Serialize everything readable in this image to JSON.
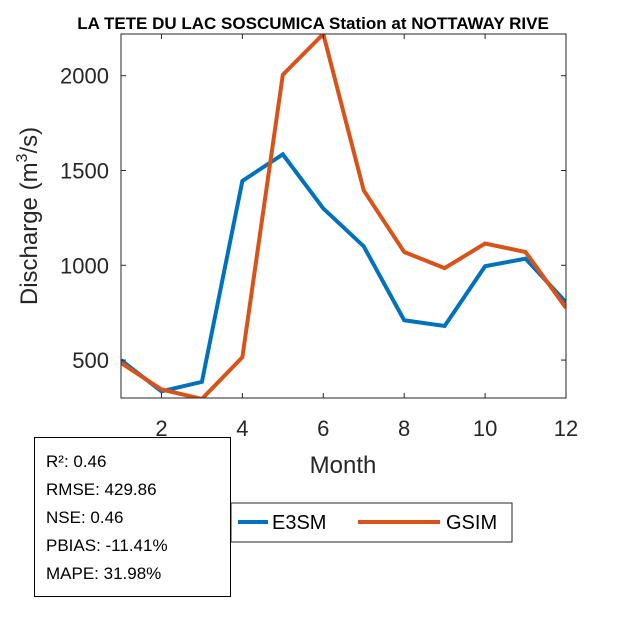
{
  "chart_data": {
    "type": "line",
    "title": "LA TETE DU LAC SOSCUMICA  Station at  NOTTAWAY RIVE",
    "xlabel": "Month",
    "ylabel": "Discharge (m",
    "ylabel_sup": "3",
    "ylabel_suffix": "/s)",
    "xlim": [
      1,
      12
    ],
    "ylim": [
      300,
      2220
    ],
    "x_ticks": [
      2,
      4,
      6,
      8,
      10,
      12
    ],
    "y_ticks": [
      500,
      1000,
      1500,
      2000
    ],
    "x": [
      1,
      2,
      3,
      4,
      5,
      6,
      7,
      8,
      9,
      10,
      11,
      12
    ],
    "series": [
      {
        "name": "E3SM",
        "color": "#0072BD",
        "values": [
          500,
          335,
          385,
          1445,
          1585,
          1300,
          1100,
          710,
          680,
          995,
          1035,
          805
        ]
      },
      {
        "name": "GSIM",
        "color": "#D95319",
        "values": [
          485,
          345,
          295,
          515,
          2005,
          2220,
          1395,
          1070,
          985,
          1115,
          1070,
          775
        ]
      }
    ],
    "legend": {
      "placement": "bottom-center",
      "orientation": "horizontal"
    },
    "grid": false
  },
  "stats": [
    "R²: 0.46",
    "RMSE: 429.86",
    "NSE: 0.46",
    "PBIAS: -11.41%",
    "MAPE: 31.98%"
  ]
}
